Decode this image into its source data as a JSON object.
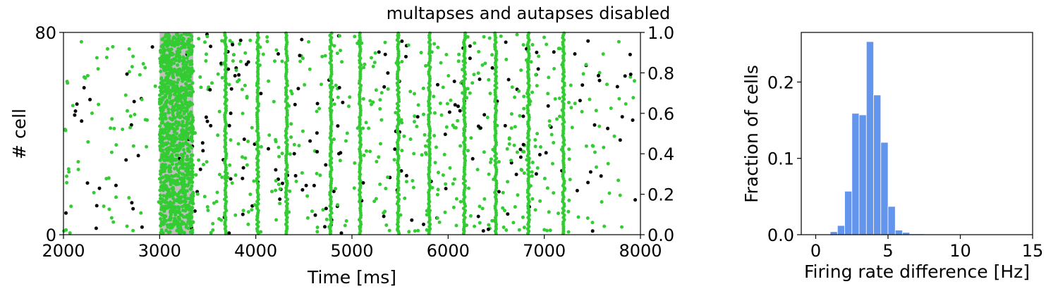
{
  "chart_data": [
    {
      "type": "scatter",
      "title": "multapses and autapses disabled",
      "xlabel": "Time [ms]",
      "ylabel": "# cell",
      "xlim": [
        2000,
        8000
      ],
      "ylim": [
        0,
        80
      ],
      "xticks": [
        "2000",
        "3000",
        "4000",
        "5000",
        "6000",
        "7000",
        "8000"
      ],
      "yticks": [
        "0",
        "80"
      ],
      "y2lim": [
        0.0,
        1.0
      ],
      "y2ticks": [
        "0.0",
        "0.2",
        "0.4",
        "0.6",
        "0.8",
        "1.0"
      ],
      "stimulus_window": [
        3000,
        3350
      ],
      "stimulus_color": "#c0c0c0",
      "green_burst_times": [
        3685,
        4020,
        4320,
        4780,
        5085,
        5480,
        5805,
        6170,
        6495,
        6835,
        7200
      ],
      "colors": {
        "green": "#33cc33",
        "black": "#000000"
      }
    },
    {
      "type": "bar",
      "xlabel": "Firing rate difference [Hz]",
      "ylabel": "Fraction of cells",
      "xlim": [
        -1,
        15
      ],
      "ylim": [
        0,
        0.265
      ],
      "xticks": [
        "0",
        "5",
        "10",
        "15"
      ],
      "yticks": [
        "0.0",
        "0.1",
        "0.2"
      ],
      "bin_width": 0.5,
      "bins_start": [
        1.0,
        1.5,
        2.0,
        2.5,
        3.0,
        3.5,
        4.0,
        4.5,
        5.0,
        5.5,
        6.0,
        6.5,
        7.0
      ],
      "values": [
        0.004,
        0.012,
        0.057,
        0.159,
        0.157,
        0.253,
        0.183,
        0.121,
        0.037,
        0.006,
        0.003,
        0.001,
        0.001
      ],
      "color": "#6495ed"
    }
  ]
}
